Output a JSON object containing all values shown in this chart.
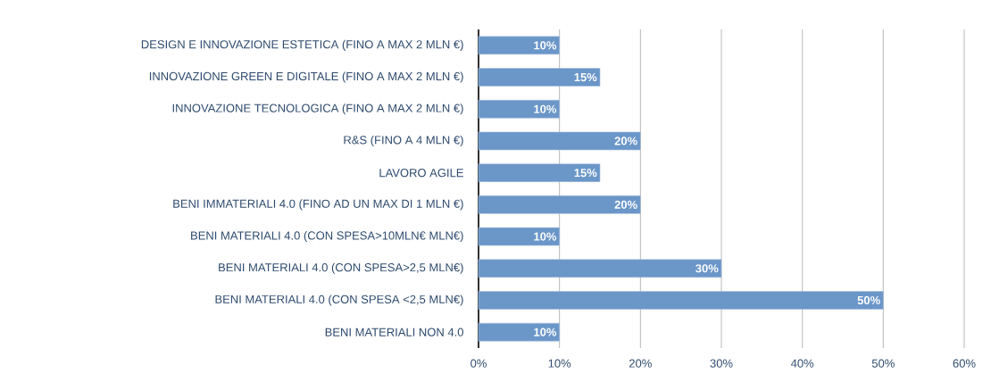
{
  "chart_data": {
    "type": "bar",
    "orientation": "horizontal",
    "categories": [
      "DESIGN E INNOVAZIONE ESTETICA (FINO A MAX 2 MLN €)",
      "INNOVAZIONE GREEN E DIGITALE (FINO A MAX 2 MLN €)",
      "INNOVAZIONE TECNOLOGICA (FINO A MAX 2 MLN €)",
      "R&S (FINO A 4 MLN €)",
      "LAVORO AGILE",
      "BENI IMMATERIALI 4.0 (FINO AD UN MAX DI 1 MLN €)",
      "BENI MATERIALI 4.0 (CON SPESA>10MLN€ MLN€)",
      "BENI MATERIALI 4.0 (CON SPESA>2,5 MLN€)",
      "BENI MATERIALI 4.0 (CON SPESA <2,5 MLN€)",
      "BENI MATERIALI NON 4.0"
    ],
    "values": [
      10,
      15,
      10,
      20,
      15,
      20,
      10,
      30,
      50,
      10
    ],
    "value_labels": [
      "10%",
      "15%",
      "10%",
      "20%",
      "15%",
      "20%",
      "10%",
      "30%",
      "50%",
      "10%"
    ],
    "color": "#6a96c8",
    "xlim": [
      0,
      60
    ],
    "xticks": [
      {
        "value": 0,
        "label": "0%"
      },
      {
        "value": 10,
        "label": "10%"
      },
      {
        "value": 20,
        "label": "20%"
      },
      {
        "value": 30,
        "label": "30%"
      },
      {
        "value": 40,
        "label": "40%"
      },
      {
        "value": 50,
        "label": "50%"
      },
      {
        "value": 60,
        "label": "60%"
      }
    ],
    "grid": "x"
  }
}
